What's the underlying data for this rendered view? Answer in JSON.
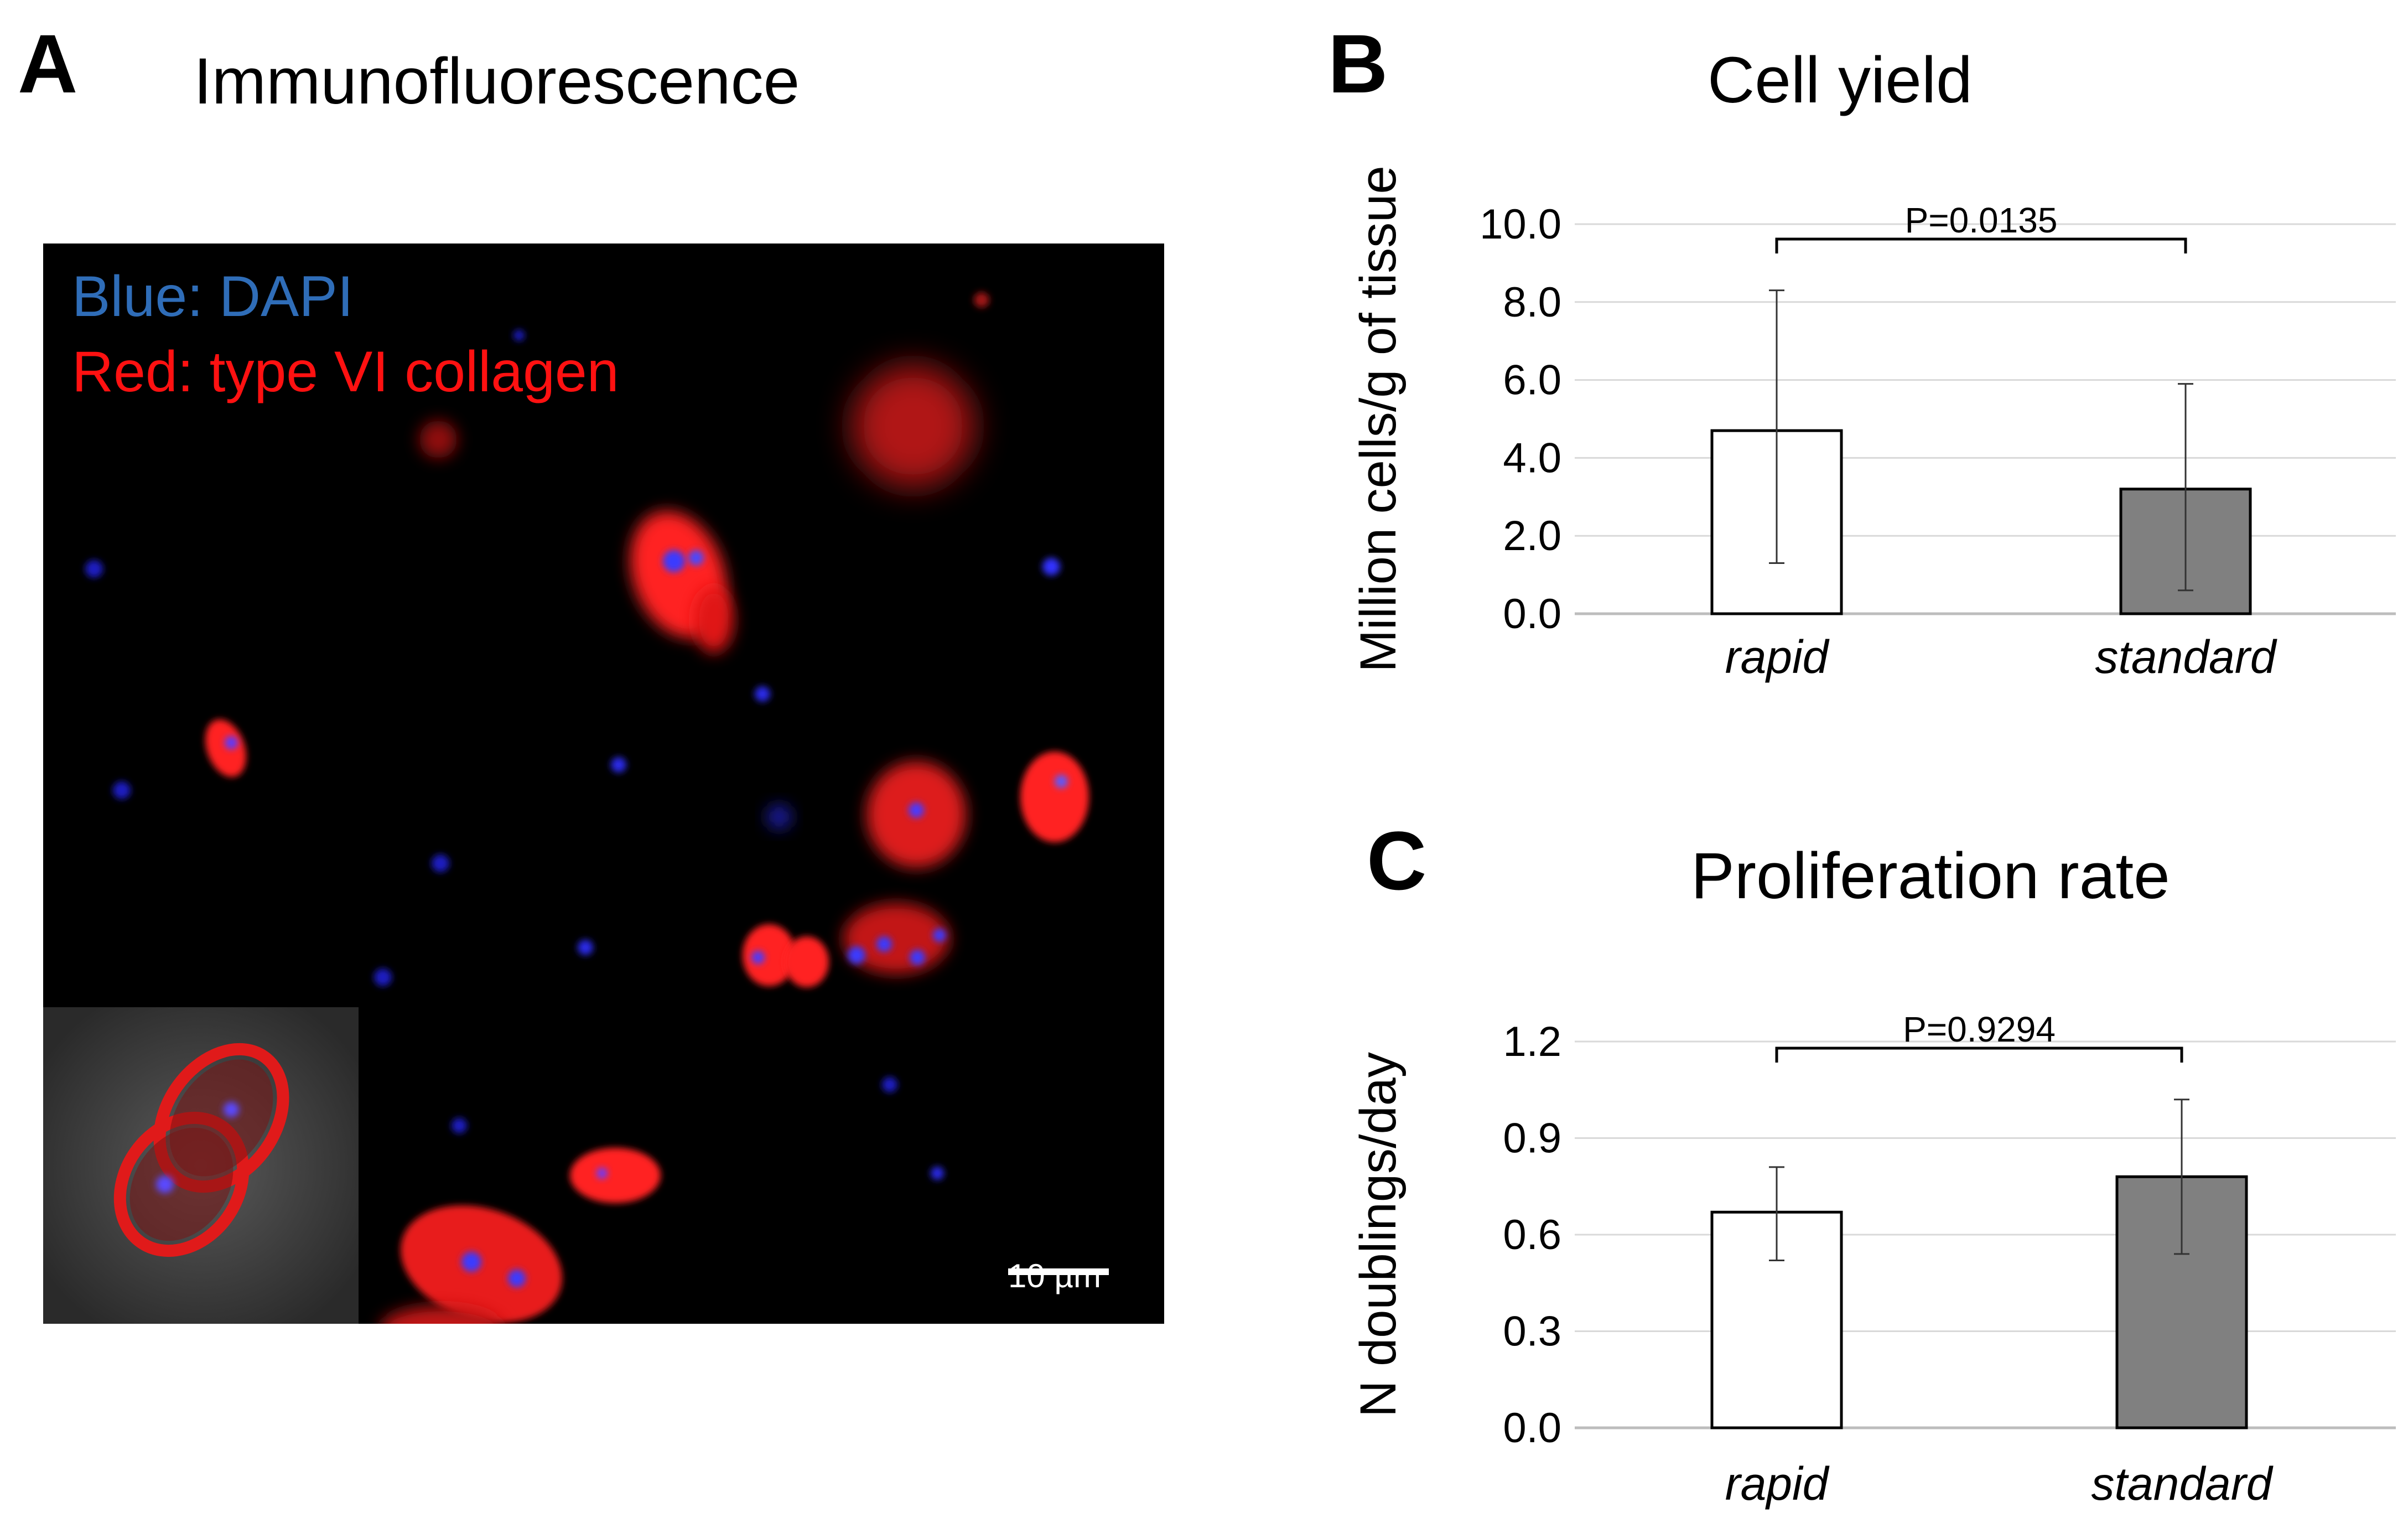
{
  "panels": {
    "a": {
      "letter": "A",
      "title": "Immunofluorescence"
    },
    "b": {
      "letter": "B",
      "title": "Cell yield"
    },
    "c": {
      "letter": "C",
      "title": "Proliferation rate"
    }
  },
  "micrograph": {
    "legend_blue": "Blue: DAPI",
    "legend_red": "Red: type VI collagen",
    "scale_bar": "10 µm",
    "colors": {
      "nuclei": "#2a2ee0",
      "collagen": "#ff1a1a",
      "background": "#000000",
      "legend_blue": "#2f6db8",
      "legend_red": "#ff1111"
    }
  },
  "chart_data": [
    {
      "type": "bar",
      "title": "Cell yield",
      "ylabel": "Million cells/g of tissue",
      "xlabel": "",
      "categories": [
        "rapid",
        "standard"
      ],
      "values": [
        4.7,
        3.2
      ],
      "error_low": [
        1.3,
        0.6
      ],
      "error_high": [
        8.3,
        5.9
      ],
      "ylim": [
        0,
        10
      ],
      "yticks": [
        "0.0",
        "2.0",
        "4.0",
        "6.0",
        "8.0",
        "10.0"
      ],
      "grid": true,
      "bar_colors": [
        "#ffffff",
        "#808080"
      ],
      "annotation": "P=0.0135"
    },
    {
      "type": "bar",
      "title": "Proliferation rate",
      "ylabel": "N doublings/day",
      "xlabel": "",
      "categories": [
        "rapid",
        "standard"
      ],
      "values": [
        0.67,
        0.78
      ],
      "error_low": [
        0.52,
        0.54
      ],
      "error_high": [
        0.81,
        1.02
      ],
      "ylim": [
        0,
        1.2
      ],
      "yticks": [
        "0.0",
        "0.3",
        "0.6",
        "0.9",
        "1.2"
      ],
      "grid": true,
      "bar_colors": [
        "#ffffff",
        "#808080"
      ],
      "annotation": "P=0.9294"
    }
  ]
}
